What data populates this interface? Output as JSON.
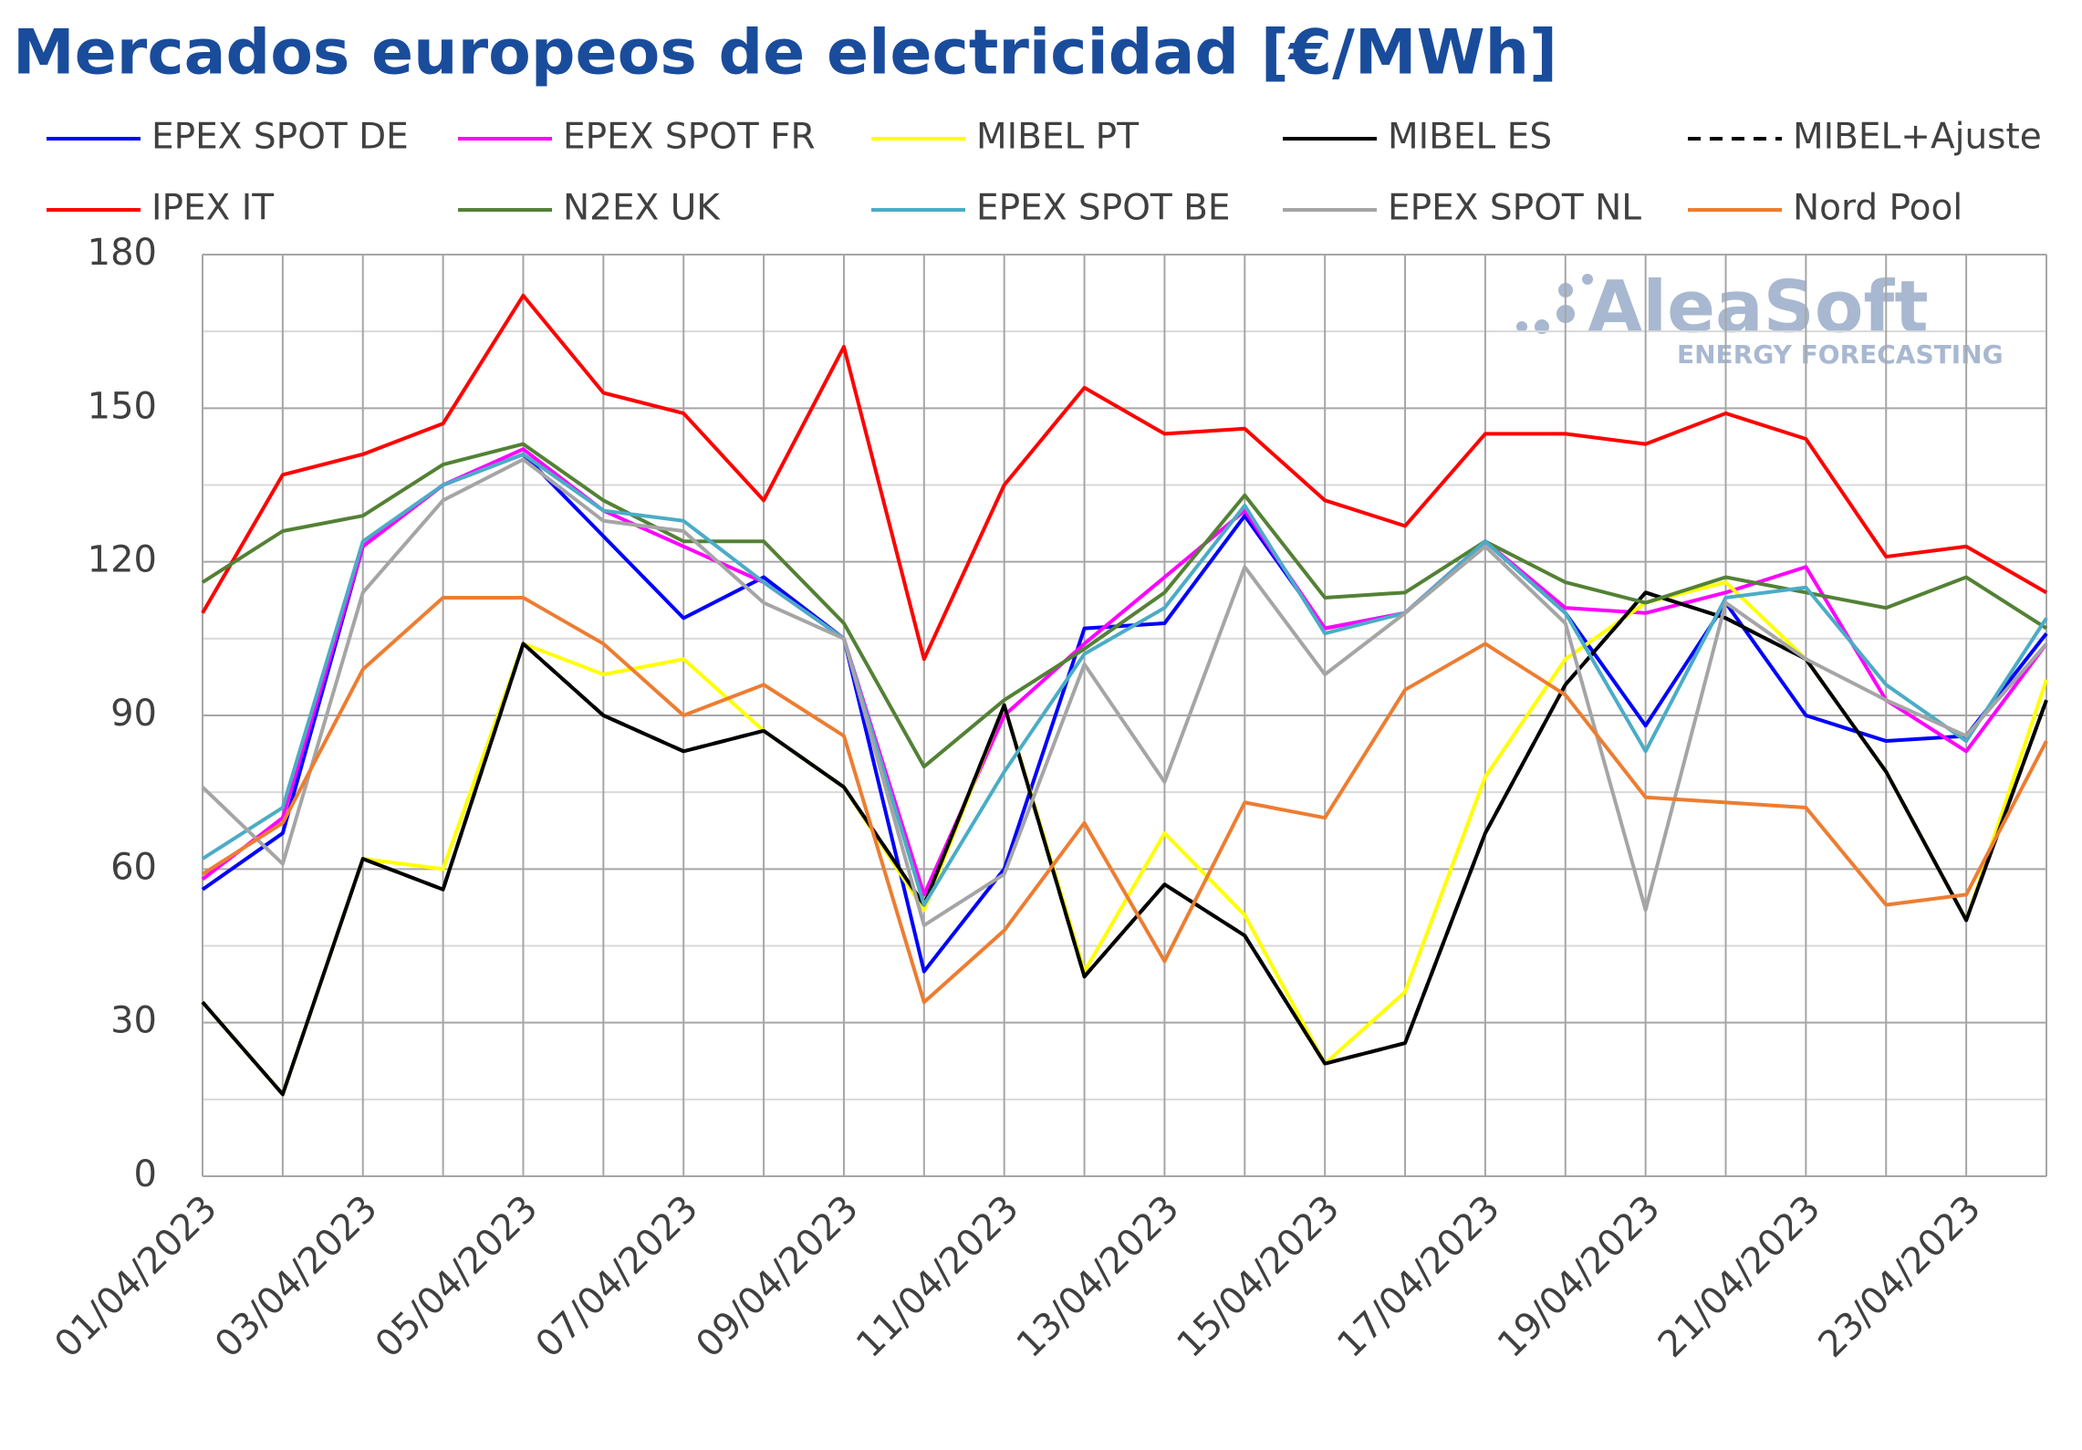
{
  "chart_data": {
    "type": "line",
    "title": "Mercados europeos de electricidad [€/MWh]",
    "watermark": [
      "AleaSoft",
      "ENERGY FORECASTING"
    ],
    "categories": [
      "01/04/2023",
      null,
      "03/04/2023",
      null,
      "05/04/2023",
      null,
      "07/04/2023",
      null,
      "09/04/2023",
      null,
      "11/04/2023",
      null,
      "13/04/2023",
      null,
      "15/04/2023",
      null,
      "17/04/2023",
      null,
      "19/04/2023",
      null,
      "21/04/2023",
      null,
      "23/04/2023",
      null
    ],
    "ylim": [
      0,
      180
    ],
    "yticks": [
      0,
      30,
      60,
      90,
      120,
      150,
      180
    ],
    "grid": true,
    "legend": "top",
    "series": [
      {
        "name": "EPEX SPOT DE",
        "color": "#0000ff",
        "values": [
          56,
          67,
          123,
          135,
          141,
          125,
          109,
          117,
          105,
          40,
          60,
          107,
          108,
          129,
          107,
          110,
          124,
          110,
          88,
          112,
          90,
          85,
          86,
          106
        ]
      },
      {
        "name": "EPEX SPOT FR",
        "color": "#ff00ff",
        "values": [
          58,
          70,
          123,
          135,
          142,
          130,
          123,
          116,
          105,
          55,
          90,
          104,
          117,
          130,
          107,
          110,
          124,
          111,
          110,
          114,
          119,
          93,
          83,
          104
        ]
      },
      {
        "name": "MIBEL PT",
        "color": "#ffff00",
        "values": [
          34,
          16,
          62,
          60,
          104,
          98,
          101,
          87,
          76,
          52,
          92,
          40,
          67,
          51,
          22,
          36,
          78,
          101,
          112,
          116,
          101,
          79,
          50,
          97
        ]
      },
      {
        "name": "MIBEL ES",
        "color": "#000000",
        "values": [
          34,
          16,
          62,
          56,
          104,
          90,
          83,
          87,
          76,
          53,
          92,
          39,
          57,
          47,
          22,
          26,
          67,
          96,
          114,
          109,
          101,
          79,
          50,
          93
        ]
      },
      {
        "name": "MIBEL+Ajuste",
        "color": "#000000",
        "dashed": true,
        "values": [
          34,
          16,
          62,
          56,
          104,
          90,
          83,
          87,
          76,
          53,
          92,
          39,
          57,
          47,
          22,
          26,
          67,
          96,
          114,
          109,
          101,
          79,
          50,
          93
        ]
      },
      {
        "name": "IPEX IT",
        "color": "#ff0000",
        "values": [
          110,
          137,
          141,
          147,
          172,
          153,
          149,
          132,
          162,
          101,
          135,
          154,
          145,
          146,
          132,
          127,
          145,
          145,
          143,
          149,
          144,
          121,
          123,
          114
        ]
      },
      {
        "name": "N2EX UK",
        "color": "#538135",
        "values": [
          116,
          126,
          129,
          139,
          143,
          132,
          124,
          124,
          108,
          80,
          93,
          103,
          114,
          133,
          113,
          114,
          124,
          116,
          112,
          117,
          114,
          111,
          117,
          107
        ]
      },
      {
        "name": "EPEX SPOT BE",
        "color": "#4bacc6",
        "values": [
          62,
          72,
          124,
          135,
          141,
          130,
          128,
          116,
          105,
          53,
          79,
          102,
          111,
          131,
          106,
          110,
          124,
          110,
          83,
          113,
          115,
          96,
          85,
          109
        ]
      },
      {
        "name": "EPEX SPOT NL",
        "color": "#a5a5a5",
        "values": [
          76,
          61,
          114,
          132,
          140,
          128,
          126,
          112,
          105,
          49,
          59,
          100,
          77,
          119,
          98,
          110,
          123,
          108,
          52,
          112,
          101,
          93,
          86,
          104
        ]
      },
      {
        "name": "Nord Pool",
        "color": "#ed7d31",
        "values": [
          59,
          69,
          99,
          113,
          113,
          104,
          90,
          96,
          86,
          34,
          48,
          69,
          42,
          73,
          70,
          95,
          104,
          94,
          74,
          73,
          72,
          53,
          55,
          85
        ]
      }
    ]
  }
}
